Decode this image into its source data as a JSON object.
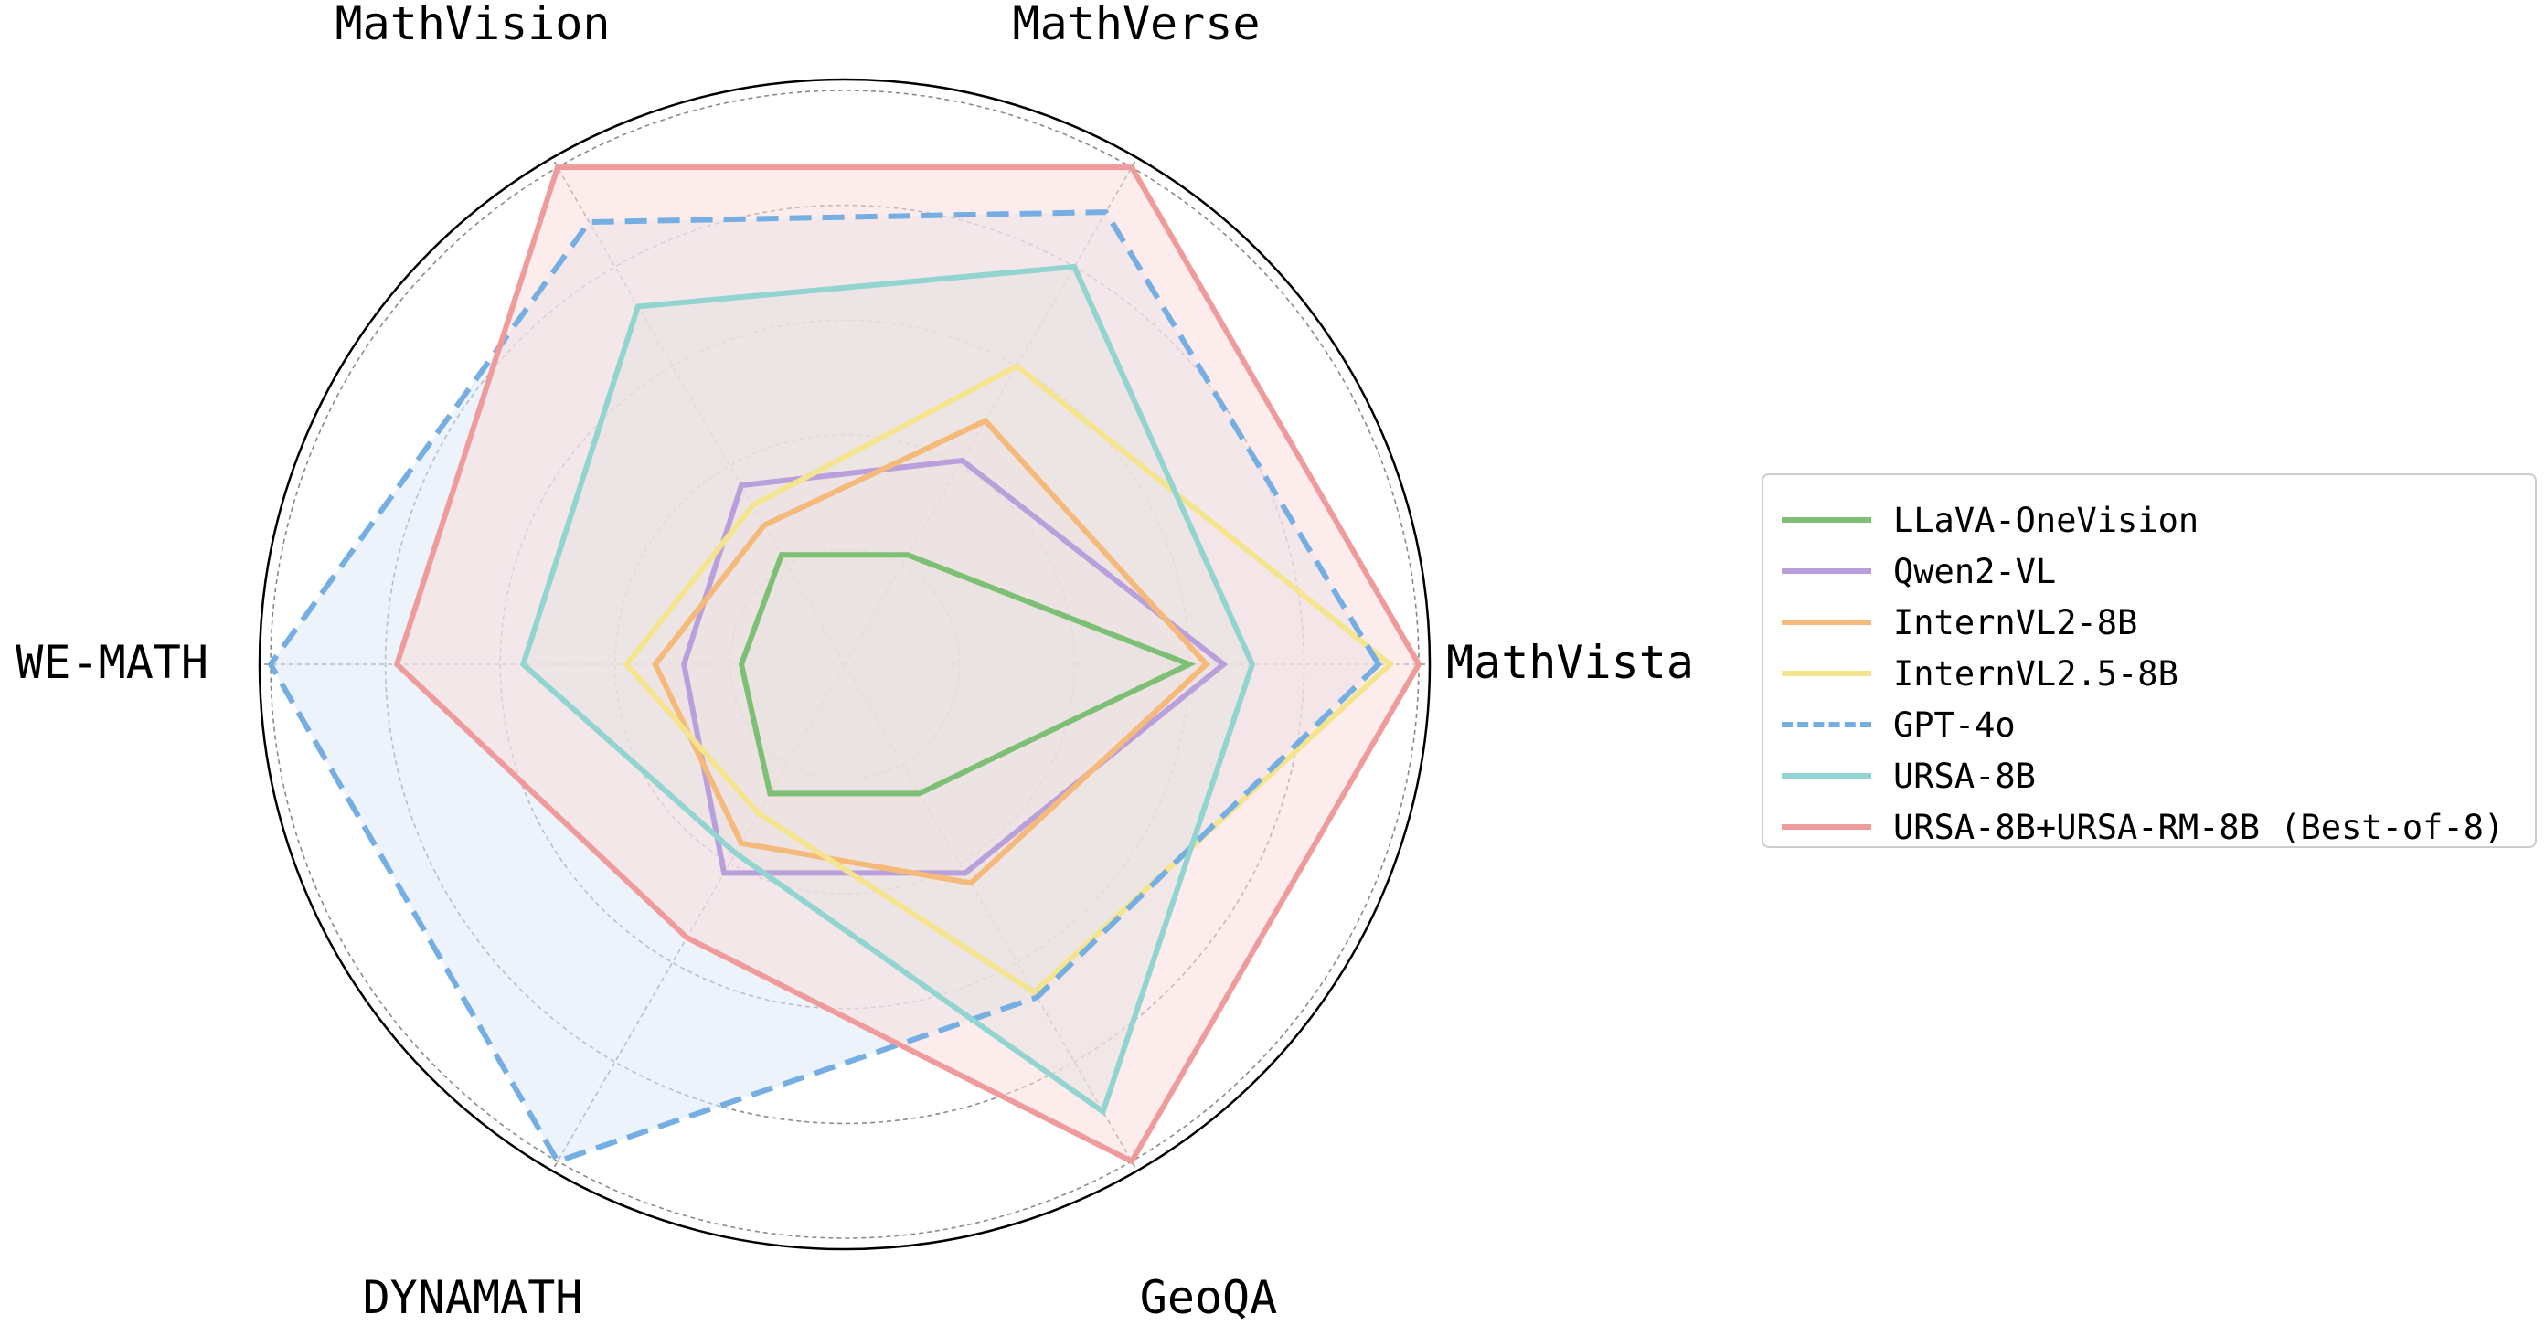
{
  "chart_data": {
    "type": "radar",
    "axes": [
      "MathVista",
      "MathVerse",
      "MathVision",
      "WE-MATH",
      "DYNAMATH",
      "GeoQA"
    ],
    "grid": true,
    "legend_position": "right",
    "series": [
      {
        "name": "LLaVA-OneVision",
        "color": "#7dbf75",
        "dashed": false,
        "fill": false,
        "values": [
          0.6,
          0.22,
          0.22,
          0.18,
          0.26,
          0.26
        ]
      },
      {
        "name": "Qwen2-VL",
        "color": "#b9a0dc",
        "dashed": false,
        "fill": false,
        "values": [
          0.66,
          0.41,
          0.36,
          0.28,
          0.42,
          0.42
        ]
      },
      {
        "name": "InternVL2-8B",
        "color": "#f5b97a",
        "dashed": false,
        "fill": false,
        "values": [
          0.63,
          0.49,
          0.28,
          0.33,
          0.36,
          0.44
        ]
      },
      {
        "name": "InternVL2.5-8B",
        "color": "#f5e48e",
        "dashed": false,
        "fill": false,
        "values": [
          0.95,
          0.6,
          0.32,
          0.38,
          0.3,
          0.66
        ]
      },
      {
        "name": "GPT-4o",
        "color": "#75aee3",
        "dashed": true,
        "fill": true,
        "fill_color": "#dde9f8",
        "values": [
          0.93,
          0.91,
          0.89,
          1.0,
          1.0,
          0.67
        ]
      },
      {
        "name": "URSA-8B",
        "color": "#92d4d0",
        "dashed": false,
        "fill": true,
        "fill_color": "#cfeae8",
        "values": [
          0.71,
          0.8,
          0.72,
          0.56,
          0.38,
          0.9
        ]
      },
      {
        "name": "URSA-8B+URSA-RM-8B (Best-of-8)",
        "color": "#ef9b9b",
        "dashed": false,
        "fill": true,
        "fill_color": "#fbdcdc",
        "values": [
          1.0,
          1.0,
          1.0,
          0.78,
          0.55,
          1.0
        ]
      }
    ]
  }
}
